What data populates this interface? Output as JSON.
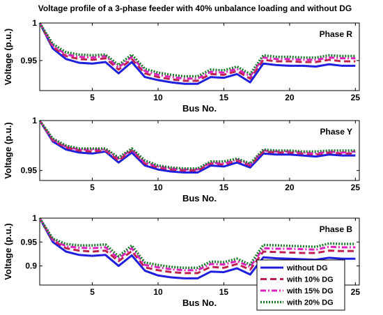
{
  "figure": {
    "title": "Voltage profile of a 3-phase feeder with 40% unbalance loading and without DG"
  },
  "chart_data": [
    {
      "type": "line",
      "annotation": "Phase R",
      "xlabel": "Bus No.",
      "ylabel": "Voltage (p.u.)",
      "xlim": [
        1,
        25.3
      ],
      "ylim": [
        0.91,
        1.0
      ],
      "xticks": [
        5,
        10,
        15,
        20,
        25
      ],
      "yticks": [
        0.95,
        1
      ],
      "x": [
        1,
        2,
        3,
        4,
        5,
        6,
        7,
        8,
        9,
        10,
        11,
        12,
        13,
        14,
        15,
        16,
        17,
        18,
        19,
        20,
        21,
        22,
        23,
        24,
        25
      ],
      "series": [
        {
          "name": "without DG",
          "color": "#1f1fdd",
          "values": [
            1.0,
            0.966,
            0.952,
            0.947,
            0.946,
            0.948,
            0.933,
            0.948,
            0.928,
            0.924,
            0.921,
            0.919,
            0.919,
            0.928,
            0.927,
            0.932,
            0.921,
            0.946,
            0.944,
            0.943,
            0.943,
            0.942,
            0.945,
            0.943,
            0.943
          ]
        },
        {
          "name": "with 10% DG",
          "color": "#c0204f",
          "values": [
            1.0,
            0.968,
            0.956,
            0.952,
            0.951,
            0.953,
            0.938,
            0.952,
            0.933,
            0.928,
            0.925,
            0.923,
            0.923,
            0.932,
            0.931,
            0.936,
            0.926,
            0.951,
            0.949,
            0.949,
            0.948,
            0.948,
            0.951,
            0.949,
            0.949
          ]
        },
        {
          "name": "with 15% DG",
          "color": "#e020c0",
          "values": [
            1.0,
            0.97,
            0.958,
            0.955,
            0.954,
            0.956,
            0.941,
            0.955,
            0.936,
            0.931,
            0.928,
            0.926,
            0.926,
            0.935,
            0.934,
            0.939,
            0.929,
            0.954,
            0.952,
            0.952,
            0.951,
            0.951,
            0.954,
            0.953,
            0.953
          ]
        },
        {
          "name": "with 20% DG",
          "color": "#1a7a2a",
          "values": [
            1.0,
            0.972,
            0.961,
            0.958,
            0.957,
            0.958,
            0.944,
            0.958,
            0.939,
            0.934,
            0.931,
            0.929,
            0.929,
            0.938,
            0.937,
            0.942,
            0.932,
            0.957,
            0.955,
            0.955,
            0.954,
            0.954,
            0.957,
            0.956,
            0.956
          ]
        }
      ]
    },
    {
      "type": "line",
      "annotation": "Phase Y",
      "xlabel": "Bus No.",
      "ylabel": "Voltage (p.u.)",
      "xlim": [
        1,
        25.3
      ],
      "ylim": [
        0.94,
        1.0
      ],
      "xticks": [
        5,
        10,
        15,
        20,
        25
      ],
      "yticks": [
        0.95,
        1
      ],
      "x": [
        1,
        2,
        3,
        4,
        5,
        6,
        7,
        8,
        9,
        10,
        11,
        12,
        13,
        14,
        15,
        16,
        17,
        18,
        19,
        20,
        21,
        22,
        23,
        24,
        25
      ],
      "series": [
        {
          "name": "without DG",
          "color": "#1f1fdd",
          "values": [
            1.0,
            0.979,
            0.971,
            0.968,
            0.967,
            0.969,
            0.958,
            0.968,
            0.955,
            0.951,
            0.949,
            0.948,
            0.948,
            0.955,
            0.954,
            0.958,
            0.953,
            0.967,
            0.966,
            0.966,
            0.965,
            0.964,
            0.966,
            0.965,
            0.965
          ]
        },
        {
          "name": "with 10% DG",
          "color": "#c0204f",
          "values": [
            1.0,
            0.98,
            0.973,
            0.97,
            0.969,
            0.97,
            0.96,
            0.97,
            0.957,
            0.953,
            0.951,
            0.95,
            0.95,
            0.957,
            0.956,
            0.96,
            0.955,
            0.969,
            0.968,
            0.968,
            0.967,
            0.966,
            0.968,
            0.967,
            0.967
          ]
        },
        {
          "name": "with 15% DG",
          "color": "#e020c0",
          "values": [
            1.0,
            0.981,
            0.974,
            0.971,
            0.971,
            0.971,
            0.962,
            0.971,
            0.958,
            0.954,
            0.952,
            0.951,
            0.951,
            0.958,
            0.957,
            0.961,
            0.956,
            0.97,
            0.969,
            0.969,
            0.968,
            0.967,
            0.969,
            0.968,
            0.969
          ]
        },
        {
          "name": "with 20% DG",
          "color": "#1a7a2a",
          "values": [
            1.0,
            0.982,
            0.975,
            0.972,
            0.972,
            0.972,
            0.963,
            0.972,
            0.96,
            0.955,
            0.953,
            0.952,
            0.952,
            0.959,
            0.959,
            0.962,
            0.957,
            0.971,
            0.97,
            0.97,
            0.969,
            0.969,
            0.97,
            0.97,
            0.97
          ]
        }
      ]
    },
    {
      "type": "line",
      "annotation": "Phase B",
      "xlabel": "Bus No.",
      "ylabel": "Voltage (p.u.)",
      "xlim": [
        1,
        25.3
      ],
      "ylim": [
        0.86,
        1.0
      ],
      "xticks": [
        5,
        10,
        15,
        20,
        25
      ],
      "yticks": [
        0.9,
        0.95,
        1
      ],
      "x": [
        1,
        2,
        3,
        4,
        5,
        6,
        7,
        8,
        9,
        10,
        11,
        12,
        13,
        14,
        15,
        16,
        17,
        18,
        19,
        20,
        21,
        22,
        23,
        24,
        25
      ],
      "series": [
        {
          "name": "without DG",
          "color": "#1f1fdd",
          "values": [
            1.0,
            0.95,
            0.93,
            0.923,
            0.921,
            0.923,
            0.9,
            0.922,
            0.89,
            0.88,
            0.876,
            0.874,
            0.874,
            0.888,
            0.887,
            0.895,
            0.882,
            0.918,
            0.916,
            0.915,
            0.914,
            0.913,
            0.917,
            0.915,
            0.915
          ]
        },
        {
          "name": "with 10% DG",
          "color": "#c0204f",
          "values": [
            1.0,
            0.953,
            0.937,
            0.932,
            0.93,
            0.932,
            0.91,
            0.931,
            0.897,
            0.891,
            0.887,
            0.885,
            0.885,
            0.898,
            0.896,
            0.904,
            0.892,
            0.93,
            0.929,
            0.928,
            0.927,
            0.927,
            0.932,
            0.931,
            0.931
          ]
        },
        {
          "name": "with 15% DG",
          "color": "#e020c0",
          "values": [
            1.0,
            0.955,
            0.941,
            0.938,
            0.937,
            0.939,
            0.915,
            0.937,
            0.902,
            0.897,
            0.893,
            0.891,
            0.891,
            0.904,
            0.903,
            0.91,
            0.898,
            0.937,
            0.936,
            0.936,
            0.935,
            0.934,
            0.94,
            0.939,
            0.939
          ]
        },
        {
          "name": "with 20% DG",
          "color": "#1a7a2a",
          "values": [
            1.0,
            0.957,
            0.946,
            0.943,
            0.943,
            0.945,
            0.92,
            0.943,
            0.907,
            0.902,
            0.898,
            0.896,
            0.896,
            0.909,
            0.908,
            0.915,
            0.903,
            0.944,
            0.943,
            0.942,
            0.941,
            0.94,
            0.947,
            0.946,
            0.946
          ]
        }
      ],
      "legend": {
        "placement": "bottom-right",
        "entries": [
          "without DG",
          "with 10% DG",
          "with 15% DG",
          "with 20% DG"
        ]
      }
    }
  ]
}
